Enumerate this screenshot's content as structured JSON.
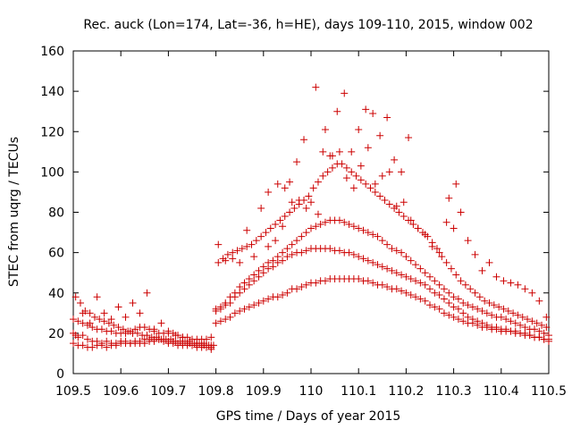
{
  "chart_data": {
    "type": "scatter",
    "title": "Rec. auck (Lon=174, Lat=-36, h=HE), days 109-110, 2015, window 002",
    "xlabel": "GPS time / Days of year 2015",
    "ylabel": "STEC from uqrg / TECUs",
    "xlim": [
      109.5,
      110.5
    ],
    "ylim": [
      0,
      160
    ],
    "x_ticks": [
      109.5,
      109.6,
      109.7,
      109.8,
      109.9,
      110,
      110.1,
      110.2,
      110.3,
      110.4,
      110.5
    ],
    "x_tick_labels": [
      "109.5",
      "109.6",
      "109.7",
      "109.8",
      "109.9",
      "110",
      "110.1",
      "110.2",
      "110.3",
      "110.4",
      "110.5"
    ],
    "y_ticks": [
      0,
      20,
      40,
      60,
      80,
      100,
      120,
      140,
      160
    ],
    "y_tick_labels": [
      "0",
      "20",
      "40",
      "60",
      "80",
      "100",
      "120",
      "140",
      "160"
    ],
    "grid": false,
    "marker": "plus",
    "color": "#cc0000",
    "series": [
      {
        "x": [
          109.5,
          109.51,
          109.52,
          109.53,
          109.54,
          109.55,
          109.56,
          109.57,
          109.58,
          109.59,
          109.6,
          109.61,
          109.62,
          109.63,
          109.64,
          109.65,
          109.66,
          109.67,
          109.68,
          109.69,
          109.7,
          109.71,
          109.72,
          109.73,
          109.74,
          109.75,
          109.76,
          109.77,
          109.78,
          109.79,
          109.8,
          109.81,
          109.82,
          109.83,
          109.84,
          109.85,
          109.86,
          109.87,
          109.88,
          109.89,
          109.9,
          109.91,
          109.92,
          109.93,
          109.94,
          109.95,
          109.96,
          109.97,
          109.98,
          109.99,
          110.0,
          110.01,
          110.02,
          110.03,
          110.04,
          110.05,
          110.06,
          110.07,
          110.08,
          110.09,
          110.1,
          110.11,
          110.12,
          110.13,
          110.14,
          110.15,
          110.16,
          110.17,
          110.18,
          110.19,
          110.2,
          110.21,
          110.22,
          110.23,
          110.24,
          110.25,
          110.26,
          110.27,
          110.28,
          110.29,
          110.3,
          110.31,
          110.32,
          110.33,
          110.34,
          110.35,
          110.36,
          110.37,
          110.38,
          110.39,
          110.4,
          110.41,
          110.42,
          110.43,
          110.44,
          110.45,
          110.46,
          110.47,
          110.48,
          110.49,
          110.5,
          109.5,
          109.51,
          109.52,
          109.53,
          109.54,
          109.55,
          109.56,
          109.57,
          109.58,
          109.59,
          109.6,
          109.61,
          109.62,
          109.63,
          109.64,
          109.65,
          109.66,
          109.67,
          109.68,
          109.69,
          109.7,
          109.71,
          109.72,
          109.73,
          109.74,
          109.75,
          109.76,
          109.77,
          109.78,
          109.79,
          109.8,
          109.81,
          109.82,
          109.83,
          109.84,
          109.85,
          109.86,
          109.87,
          109.88,
          109.89,
          109.9,
          109.91,
          109.92,
          109.93,
          109.94,
          109.95,
          109.96,
          109.97,
          109.98,
          109.99,
          110.0,
          110.01,
          110.02,
          110.03,
          110.04,
          110.05,
          110.06,
          110.07,
          110.08,
          110.09,
          110.1,
          110.11,
          110.12,
          110.13,
          110.14,
          110.15,
          110.16,
          110.17,
          110.18,
          110.19,
          110.2,
          110.21,
          110.22,
          110.23,
          110.24,
          110.25,
          110.26,
          110.27,
          110.28,
          110.29,
          110.3,
          110.31,
          110.32,
          110.33,
          110.34,
          110.35,
          110.36,
          110.37,
          110.38,
          110.39,
          110.4,
          110.41,
          110.42,
          110.43,
          110.44,
          110.45,
          110.46,
          110.47,
          110.48,
          110.49,
          110.5,
          109.5,
          109.51,
          109.52,
          109.53,
          109.54,
          109.55,
          109.56,
          109.57,
          109.58,
          109.59,
          109.6,
          109.61,
          109.62,
          109.63,
          109.64,
          109.65,
          109.66,
          109.67,
          109.68,
          109.69,
          109.7,
          109.71,
          109.72,
          109.73,
          109.74,
          109.75,
          109.76,
          109.77,
          109.78,
          109.79,
          109.8,
          109.81,
          109.82,
          109.83,
          109.84,
          109.85,
          109.86,
          109.87,
          109.88,
          109.89,
          109.9,
          109.91,
          109.92,
          109.93,
          109.94,
          109.95,
          109.96,
          109.97,
          109.98,
          109.99,
          110.0,
          110.01,
          110.02,
          110.03,
          110.04,
          110.05,
          110.06,
          110.07,
          110.08,
          110.09,
          110.1,
          110.11,
          110.12,
          110.13,
          110.14,
          110.15,
          110.16,
          110.17,
          110.18,
          110.19,
          110.2,
          110.21,
          110.22,
          110.23,
          110.24,
          110.25,
          110.26,
          110.27,
          110.28,
          110.29,
          110.3,
          110.31,
          110.32,
          110.33,
          110.34,
          110.35,
          110.36,
          110.37,
          110.38,
          110.39,
          110.4,
          110.41,
          110.42,
          110.43,
          110.44,
          110.45,
          110.46,
          110.47,
          110.48,
          110.49,
          110.5,
          109.505,
          109.515,
          109.525,
          109.535,
          109.545,
          109.555,
          109.565,
          109.575,
          109.585,
          109.595,
          109.605,
          109.615,
          109.625,
          109.635,
          109.645,
          109.655,
          109.665,
          109.675,
          109.685,
          109.695,
          109.705,
          109.715,
          109.725,
          109.735,
          109.745,
          109.755,
          109.765,
          109.775,
          109.785,
          109.795,
          109.805,
          109.815,
          109.825,
          109.835,
          109.845,
          109.855,
          109.865,
          109.875,
          109.885,
          109.895,
          109.905,
          109.915,
          109.925,
          109.935,
          109.945,
          109.955,
          109.965,
          109.975,
          109.985,
          109.995,
          110.005,
          110.015,
          110.025,
          110.035,
          110.045,
          110.055,
          110.065,
          110.075,
          110.085,
          110.095,
          110.105,
          110.115,
          110.125,
          110.135,
          110.145,
          110.155,
          110.165,
          110.175,
          110.185,
          110.195,
          110.205,
          110.215,
          110.225,
          110.235,
          110.245,
          110.255,
          110.265,
          110.275,
          110.285,
          110.295,
          110.305,
          110.315,
          110.325,
          110.335,
          110.345,
          110.355,
          110.365,
          110.375,
          110.385,
          110.395,
          110.405,
          110.415,
          110.425,
          110.435,
          110.445,
          110.455,
          110.465,
          110.475,
          110.485,
          110.495,
          109.505,
          109.52,
          109.535,
          109.55,
          109.565,
          109.58,
          109.595,
          109.61,
          109.625,
          109.64,
          109.655,
          109.67,
          109.685,
          109.7,
          109.715,
          109.73,
          109.745,
          109.76,
          109.775,
          109.79,
          109.805,
          109.82,
          109.835,
          109.85,
          109.865,
          109.88,
          109.895,
          109.91,
          109.925,
          109.94,
          109.955,
          109.97,
          109.985,
          110.0,
          110.015,
          110.03,
          110.045,
          110.06,
          110.075,
          110.09,
          110.105,
          110.12,
          110.135,
          110.15,
          110.165,
          110.18,
          110.195,
          110.21,
          110.225,
          110.24,
          110.255,
          110.27,
          110.285,
          110.3,
          110.315,
          110.33,
          110.345,
          110.36,
          110.375,
          110.39,
          110.405,
          110.42,
          110.435,
          110.45,
          110.465,
          110.48,
          110.495,
          109.91,
          109.93,
          109.945,
          109.96,
          109.975,
          109.99,
          110.01,
          110.025,
          110.04,
          110.055,
          110.07,
          110.085,
          110.1,
          110.115,
          110.13,
          110.145,
          110.16,
          110.175,
          110.19,
          110.205,
          110.29,
          110.305
        ],
        "y": [
          20,
          18,
          19,
          17,
          16,
          16,
          15,
          16,
          15,
          15,
          16,
          16,
          15,
          15,
          15,
          15,
          16,
          16,
          17,
          17,
          16,
          16,
          15,
          15,
          15,
          14,
          14,
          14,
          14,
          13,
          25,
          26,
          27,
          28,
          30,
          31,
          32,
          33,
          34,
          35,
          36,
          37,
          38,
          38,
          39,
          40,
          42,
          42,
          43,
          44,
          45,
          45,
          46,
          46,
          47,
          47,
          47,
          47,
          47,
          47,
          47,
          46,
          46,
          45,
          44,
          44,
          43,
          42,
          42,
          41,
          40,
          39,
          38,
          37,
          36,
          34,
          33,
          32,
          30,
          29,
          28,
          27,
          26,
          25,
          25,
          24,
          23,
          23,
          22,
          22,
          21,
          21,
          21,
          20,
          20,
          19,
          19,
          18,
          18,
          17,
          17,
          15,
          14,
          14,
          13,
          13,
          14,
          14,
          13,
          14,
          14,
          15,
          15,
          15,
          16,
          16,
          17,
          17,
          17,
          17,
          16,
          15,
          15,
          14,
          14,
          14,
          14,
          13,
          13,
          13,
          12,
          31,
          32,
          34,
          35,
          38,
          40,
          42,
          44,
          46,
          48,
          50,
          52,
          53,
          55,
          56,
          58,
          59,
          60,
          60,
          61,
          62,
          62,
          62,
          62,
          62,
          61,
          61,
          60,
          60,
          59,
          58,
          57,
          56,
          55,
          54,
          53,
          52,
          51,
          50,
          49,
          48,
          47,
          46,
          45,
          44,
          42,
          40,
          39,
          37,
          35,
          33,
          32,
          30,
          28,
          27,
          26,
          25,
          24,
          23,
          23,
          22,
          22,
          21,
          21,
          20,
          20,
          19,
          18,
          18,
          17,
          16,
          27,
          26,
          25,
          24,
          23,
          22,
          22,
          21,
          21,
          20,
          20,
          20,
          21,
          22,
          23,
          23,
          22,
          21,
          20,
          20,
          21,
          20,
          19,
          18,
          18,
          17,
          17,
          17,
          17,
          18,
          32,
          33,
          35,
          38,
          40,
          43,
          45,
          47,
          49,
          51,
          53,
          55,
          56,
          58,
          60,
          62,
          64,
          66,
          68,
          70,
          72,
          73,
          74,
          75,
          76,
          76,
          76,
          75,
          74,
          73,
          72,
          71,
          70,
          69,
          68,
          66,
          64,
          62,
          61,
          60,
          58,
          56,
          54,
          52,
          50,
          48,
          46,
          44,
          42,
          40,
          38,
          37,
          35,
          34,
          33,
          32,
          31,
          30,
          29,
          28,
          28,
          27,
          26,
          25,
          24,
          23,
          22,
          22,
          21,
          20,
          19,
          38,
          35,
          31,
          30,
          28,
          27,
          26,
          25,
          24,
          23,
          22,
          21,
          20,
          20,
          19,
          19,
          18,
          18,
          17,
          17,
          17,
          16,
          16,
          16,
          15,
          15,
          15,
          14,
          14,
          14,
          55,
          57,
          59,
          60,
          61,
          62,
          63,
          64,
          66,
          68,
          70,
          72,
          74,
          76,
          78,
          80,
          82,
          84,
          86,
          88,
          92,
          95,
          98,
          100,
          102,
          104,
          104,
          102,
          100,
          98,
          96,
          94,
          92,
          90,
          88,
          86,
          84,
          82,
          80,
          78,
          76,
          74,
          72,
          70,
          68,
          65,
          62,
          58,
          55,
          52,
          49,
          46,
          44,
          42,
          40,
          38,
          36,
          35,
          34,
          33,
          32,
          31,
          30,
          29,
          28,
          27,
          26,
          25,
          24,
          23,
          19,
          30,
          25,
          38,
          30,
          27,
          33,
          28,
          35,
          30,
          40,
          22,
          25,
          20,
          19,
          18,
          16,
          15,
          15,
          14,
          64,
          56,
          57,
          55,
          71,
          58,
          82,
          63,
          66,
          73,
          95,
          105,
          116,
          85,
          79,
          121,
          108,
          110,
          97,
          92,
          103,
          112,
          94,
          98,
          100,
          83,
          85,
          76,
          72,
          69,
          63,
          60,
          75,
          72,
          80,
          66,
          59,
          51,
          55,
          48,
          46,
          45,
          44,
          42,
          40,
          36,
          28,
          90,
          94,
          92,
          85,
          86,
          82,
          142,
          110,
          108,
          130,
          139,
          110,
          121,
          131,
          129,
          118,
          127,
          106,
          100,
          117,
          87,
          94
        ]
      }
    ]
  }
}
